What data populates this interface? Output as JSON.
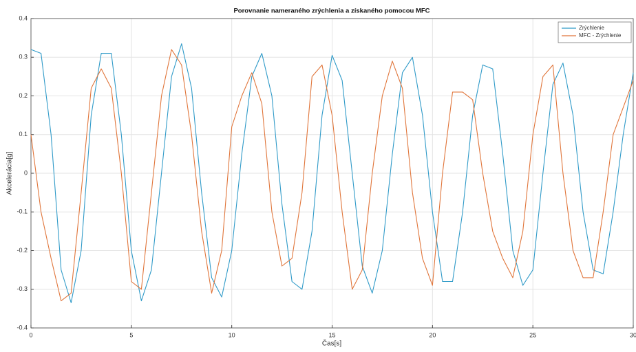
{
  "chart_data": {
    "type": "line",
    "title": "Porovnanie nameraného zrýchlenia a získaného pomocou MFC",
    "x_label": "Čas[s]",
    "y_label": "Akcelerácia[g]",
    "x": [
      0,
      0.5,
      1,
      1.5,
      2,
      2.5,
      3,
      3.5,
      4,
      4.5,
      5,
      5.5,
      6,
      6.5,
      7,
      7.5,
      8,
      8.5,
      9,
      9.5,
      10,
      10.5,
      11,
      11.5,
      12,
      12.5,
      13,
      13.5,
      14,
      14.5,
      15,
      15.5,
      16,
      16.5,
      17,
      17.5,
      18,
      18.5,
      19,
      19.5,
      20,
      20.5,
      21,
      21.5,
      22,
      22.5,
      23,
      23.5,
      24,
      24.5,
      25,
      25.5,
      26,
      26.5,
      27,
      27.5,
      28,
      28.5,
      29,
      29.5,
      30
    ],
    "series": [
      {
        "name": "Zrýchlenie",
        "color": "#2f9ac8",
        "values": [
          0.32,
          0.31,
          0.1,
          -0.25,
          -0.335,
          -0.2,
          0.15,
          0.31,
          0.31,
          0.1,
          -0.2,
          -0.33,
          -0.25,
          0,
          0.25,
          0.335,
          0.22,
          -0.05,
          -0.27,
          -0.32,
          -0.2,
          0.05,
          0.25,
          0.31,
          0.2,
          -0.08,
          -0.28,
          -0.3,
          -0.15,
          0.15,
          0.305,
          0.24,
          0,
          -0.24,
          -0.31,
          -0.2,
          0.05,
          0.26,
          0.3,
          0.15,
          -0.1,
          -0.28,
          -0.28,
          -0.1,
          0.15,
          0.28,
          0.27,
          0.05,
          -0.2,
          -0.29,
          -0.25,
          0,
          0.23,
          0.285,
          0.15,
          -0.1,
          -0.25,
          -0.26,
          -0.1,
          0.1,
          0.26
        ]
      },
      {
        "name": "MFC - Zrýchlenie",
        "color": "#e0753a",
        "values": [
          0.1,
          -0.1,
          -0.22,
          -0.33,
          -0.31,
          -0.05,
          0.22,
          0.27,
          0.22,
          0,
          -0.28,
          -0.3,
          -0.05,
          0.2,
          0.32,
          0.28,
          0.1,
          -0.15,
          -0.31,
          -0.2,
          0.12,
          0.2,
          0.26,
          0.18,
          -0.1,
          -0.24,
          -0.22,
          -0.05,
          0.25,
          0.28,
          0.15,
          -0.1,
          -0.3,
          -0.25,
          0,
          0.2,
          0.29,
          0.22,
          -0.05,
          -0.22,
          -0.29,
          0,
          0.21,
          0.21,
          0.19,
          0,
          -0.15,
          -0.22,
          -0.27,
          -0.15,
          0.1,
          0.25,
          0.28,
          0,
          -0.2,
          -0.27,
          -0.27,
          -0.1,
          0.1,
          0.17,
          0.24
        ]
      }
    ],
    "xlim": [
      0,
      30
    ],
    "xticks": [
      0,
      5,
      10,
      15,
      20,
      25,
      30
    ],
    "ylim": [
      -0.4,
      0.4
    ],
    "yticks": [
      -0.4,
      -0.3,
      -0.2,
      -0.1,
      0,
      0.1,
      0.2,
      0.3,
      0.4
    ],
    "grid": true,
    "legend": "top-right"
  }
}
